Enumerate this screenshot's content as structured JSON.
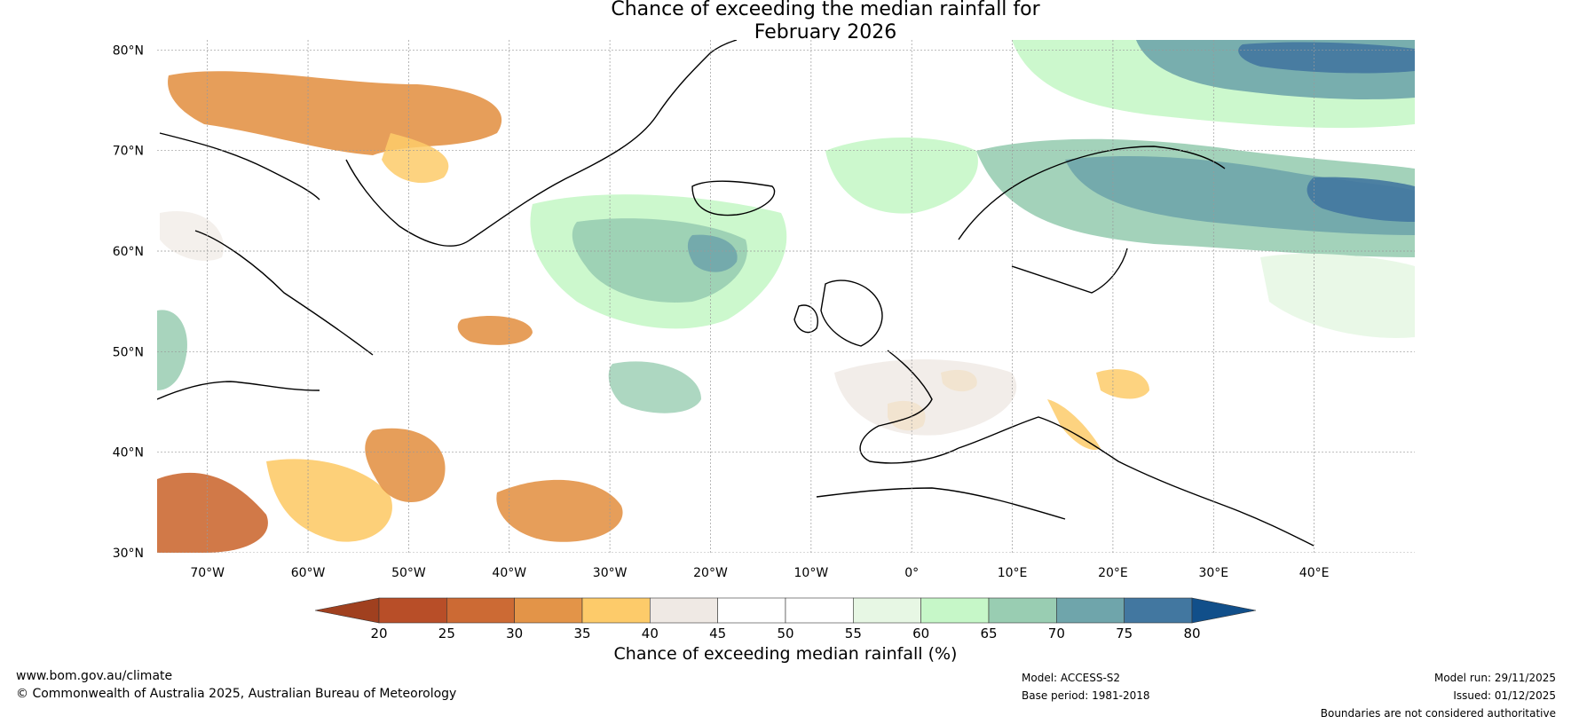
{
  "title": {
    "line1": "Chance of exceeding the median rainfall for",
    "line2": "February 2026"
  },
  "map": {
    "lat_labels": [
      "80°N",
      "70°N",
      "60°N",
      "50°N",
      "40°N",
      "30°N"
    ],
    "lat_values": [
      80,
      70,
      60,
      50,
      40,
      30
    ],
    "lon_labels": [
      "70°W",
      "60°W",
      "50°W",
      "40°W",
      "30°W",
      "20°W",
      "10°W",
      "0°",
      "10°E",
      "20°E",
      "30°E",
      "40°E"
    ],
    "lon_values": [
      -70,
      -60,
      -50,
      -40,
      -30,
      -20,
      -10,
      0,
      10,
      20,
      30,
      40
    ],
    "extent": {
      "lon_min": -75,
      "lon_max": 50,
      "lat_min": 30,
      "lat_max": 81
    }
  },
  "colorbar": {
    "ticks": [
      "20",
      "25",
      "30",
      "35",
      "40",
      "45",
      "50",
      "55",
      "60",
      "65",
      "70",
      "75",
      "80"
    ],
    "colors": [
      "#a0401f",
      "#b84e28",
      "#cc6a34",
      "#e39448",
      "#fdcb6a",
      "#efe9e4",
      "#ffffff",
      "#ffffff",
      "#e7f7e4",
      "#c6f7c8",
      "#99cdb2",
      "#6fa5ab",
      "#4277a0",
      "#114f8a"
    ],
    "label": "Chance of exceeding median rainfall (%)"
  },
  "footer": {
    "website": "www.bom.gov.au/climate",
    "copyright": "© Commonwealth of Australia 2025, Australian Bureau of Meteorology",
    "model": "Model: ACCESS-S2",
    "base_period": "Base period: 1981-2018",
    "model_run": "Model run: 29/11/2025",
    "issued": "Issued: 01/12/2025",
    "disclaimer": "Boundaries are not considered authoritative"
  }
}
